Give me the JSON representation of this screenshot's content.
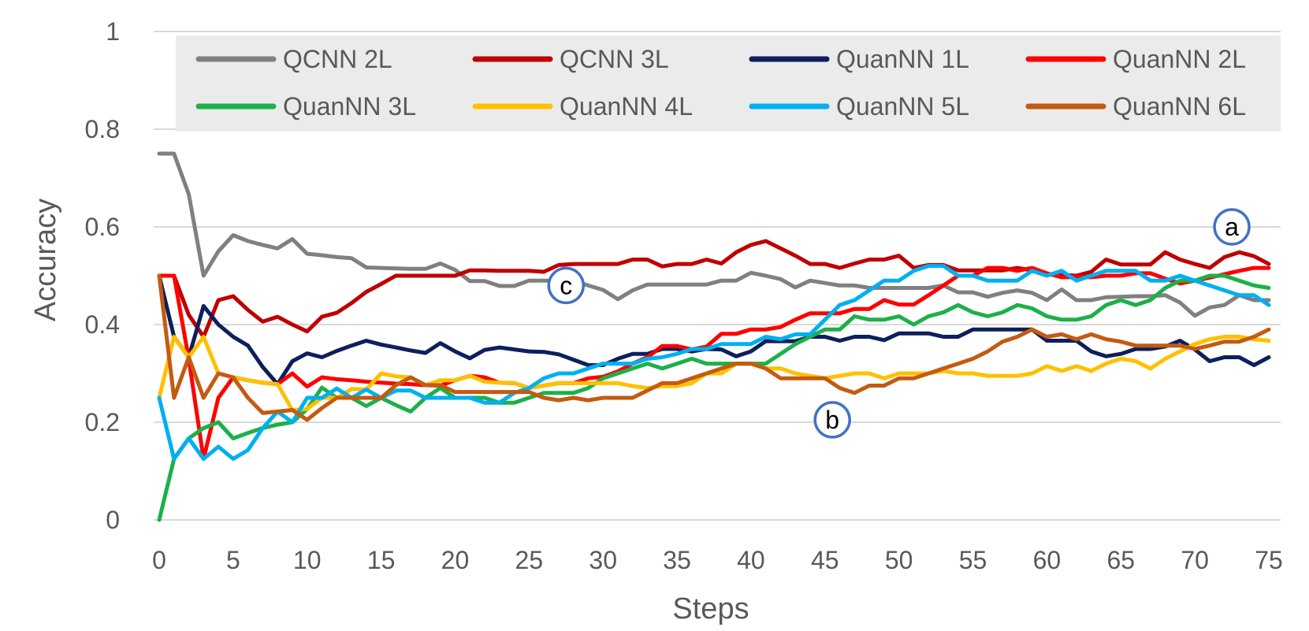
{
  "chart_data": {
    "type": "line",
    "title": "",
    "xlabel": "Steps",
    "ylabel": "Accuracy",
    "xlim": [
      0,
      75
    ],
    "ylim": [
      0,
      1
    ],
    "xticks": [
      "0",
      "5",
      "10",
      "15",
      "20",
      "25",
      "30",
      "35",
      "40",
      "45",
      "50",
      "55",
      "60",
      "65",
      "70",
      "75"
    ],
    "yticks": [
      "0",
      "0.2",
      "0.4",
      "0.6",
      "0.8",
      "1"
    ],
    "legend_position": "top",
    "annotations": [
      {
        "label": "a",
        "x": 72.5,
        "y": 0.6
      },
      {
        "label": "b",
        "x": 45.5,
        "y": 0.205
      },
      {
        "label": "c",
        "x": 27.5,
        "y": 0.48
      }
    ],
    "series": [
      {
        "name": "QCNN 2L",
        "color": "#808080",
        "values": [
          0.75,
          0.75,
          0.667,
          0.5,
          0.55,
          0.583,
          0.571,
          0.563,
          0.556,
          0.575,
          0.545,
          0.542,
          0.538,
          0.536,
          0.517,
          0.516,
          0.515,
          0.514,
          0.514,
          0.525,
          0.512,
          0.489,
          0.489,
          0.479,
          0.479,
          0.49,
          0.49,
          0.49,
          0.49,
          0.48,
          0.471,
          0.452,
          0.47,
          0.482,
          0.482,
          0.482,
          0.482,
          0.482,
          0.49,
          0.49,
          0.506,
          0.5,
          0.493,
          0.476,
          0.49,
          0.485,
          0.48,
          0.48,
          0.475,
          0.475,
          0.475,
          0.475,
          0.475,
          0.48,
          0.466,
          0.466,
          0.457,
          0.465,
          0.47,
          0.465,
          0.45,
          0.472,
          0.45,
          0.45,
          0.456,
          0.457,
          0.458,
          0.458,
          0.46,
          0.445,
          0.418,
          0.435,
          0.44,
          0.46,
          0.45,
          0.45
        ]
      },
      {
        "name": "QCNN 3L",
        "color": "#c00000",
        "values": [
          0.5,
          0.5,
          0.42,
          0.375,
          0.45,
          0.458,
          0.43,
          0.406,
          0.416,
          0.4,
          0.386,
          0.416,
          0.424,
          0.444,
          0.467,
          0.483,
          0.5,
          0.5,
          0.5,
          0.5,
          0.5,
          0.511,
          0.511,
          0.51,
          0.51,
          0.51,
          0.508,
          0.522,
          0.524,
          0.524,
          0.524,
          0.524,
          0.533,
          0.533,
          0.519,
          0.524,
          0.524,
          0.533,
          0.525,
          0.548,
          0.563,
          0.571,
          0.556,
          0.541,
          0.524,
          0.524,
          0.516,
          0.525,
          0.533,
          0.533,
          0.541,
          0.516,
          0.522,
          0.522,
          0.511,
          0.511,
          0.511,
          0.511,
          0.516,
          0.511,
          0.502,
          0.502,
          0.5,
          0.508,
          0.533,
          0.523,
          0.523,
          0.523,
          0.548,
          0.533,
          0.524,
          0.516,
          0.538,
          0.548,
          0.54,
          0.524
        ]
      },
      {
        "name": "QuanNN 1L",
        "color": "#0d1f5c",
        "values": [
          0.5,
          0.375,
          0.333,
          0.438,
          0.4,
          0.375,
          0.357,
          0.313,
          0.278,
          0.325,
          0.341,
          0.333,
          0.346,
          0.357,
          0.367,
          0.359,
          0.353,
          0.347,
          0.342,
          0.362,
          0.345,
          0.331,
          0.348,
          0.353,
          0.349,
          0.345,
          0.344,
          0.339,
          0.328,
          0.317,
          0.317,
          0.33,
          0.34,
          0.34,
          0.35,
          0.35,
          0.345,
          0.35,
          0.349,
          0.335,
          0.345,
          0.366,
          0.366,
          0.366,
          0.375,
          0.375,
          0.367,
          0.375,
          0.375,
          0.368,
          0.382,
          0.382,
          0.382,
          0.375,
          0.375,
          0.39,
          0.39,
          0.39,
          0.39,
          0.39,
          0.367,
          0.367,
          0.367,
          0.345,
          0.335,
          0.34,
          0.35,
          0.35,
          0.355,
          0.367,
          0.349,
          0.325,
          0.333,
          0.333,
          0.317,
          0.333
        ]
      },
      {
        "name": "QuanNN 2L",
        "color": "#ff0000",
        "values": [
          0.5,
          0.5,
          0.33,
          0.125,
          0.25,
          0.292,
          0.286,
          0.281,
          0.278,
          0.3,
          0.273,
          0.292,
          0.288,
          0.286,
          0.283,
          0.281,
          0.279,
          0.278,
          0.276,
          0.275,
          0.286,
          0.295,
          0.292,
          0.281,
          0.28,
          0.27,
          0.275,
          0.28,
          0.28,
          0.29,
          0.293,
          0.304,
          0.32,
          0.333,
          0.356,
          0.356,
          0.349,
          0.355,
          0.381,
          0.381,
          0.39,
          0.39,
          0.395,
          0.41,
          0.423,
          0.423,
          0.423,
          0.432,
          0.432,
          0.45,
          0.441,
          0.441,
          0.46,
          0.48,
          0.5,
          0.5,
          0.516,
          0.516,
          0.51,
          0.516,
          0.505,
          0.497,
          0.497,
          0.497,
          0.5,
          0.5,
          0.505,
          0.505,
          0.494,
          0.484,
          0.49,
          0.496,
          0.503,
          0.51,
          0.516,
          0.516
        ]
      },
      {
        "name": "QuanNN 3L",
        "color": "#1db049",
        "values": [
          0,
          0.125,
          0.167,
          0.188,
          0.2,
          0.167,
          0.178,
          0.188,
          0.195,
          0.2,
          0.227,
          0.271,
          0.25,
          0.25,
          0.233,
          0.25,
          0.235,
          0.222,
          0.25,
          0.27,
          0.25,
          0.25,
          0.25,
          0.24,
          0.24,
          0.25,
          0.26,
          0.26,
          0.26,
          0.27,
          0.29,
          0.3,
          0.31,
          0.32,
          0.31,
          0.32,
          0.33,
          0.32,
          0.32,
          0.32,
          0.32,
          0.32,
          0.34,
          0.36,
          0.375,
          0.39,
          0.39,
          0.417,
          0.41,
          0.41,
          0.417,
          0.4,
          0.417,
          0.425,
          0.44,
          0.425,
          0.417,
          0.425,
          0.44,
          0.433,
          0.417,
          0.41,
          0.41,
          0.417,
          0.44,
          0.45,
          0.44,
          0.45,
          0.475,
          0.49,
          0.49,
          0.5,
          0.5,
          0.49,
          0.48,
          0.475
        ]
      },
      {
        "name": "QuanNN 4L",
        "color": "#ffc000",
        "values": [
          0.25,
          0.375,
          0.333,
          0.375,
          0.3,
          0.292,
          0.286,
          0.281,
          0.278,
          0.225,
          0.227,
          0.25,
          0.25,
          0.268,
          0.267,
          0.3,
          0.294,
          0.292,
          0.276,
          0.286,
          0.286,
          0.295,
          0.283,
          0.281,
          0.28,
          0.27,
          0.275,
          0.28,
          0.28,
          0.28,
          0.28,
          0.28,
          0.274,
          0.27,
          0.274,
          0.274,
          0.28,
          0.3,
          0.3,
          0.32,
          0.32,
          0.31,
          0.31,
          0.3,
          0.295,
          0.29,
          0.295,
          0.3,
          0.3,
          0.29,
          0.3,
          0.3,
          0.3,
          0.305,
          0.3,
          0.3,
          0.295,
          0.295,
          0.295,
          0.3,
          0.315,
          0.305,
          0.315,
          0.305,
          0.32,
          0.33,
          0.325,
          0.31,
          0.33,
          0.345,
          0.36,
          0.37,
          0.375,
          0.375,
          0.37,
          0.367
        ]
      },
      {
        "name": "QuanNN 5L",
        "color": "#00b0f0",
        "values": [
          0.25,
          0.125,
          0.167,
          0.125,
          0.15,
          0.125,
          0.143,
          0.188,
          0.222,
          0.2,
          0.25,
          0.25,
          0.269,
          0.25,
          0.267,
          0.25,
          0.265,
          0.265,
          0.25,
          0.25,
          0.25,
          0.25,
          0.24,
          0.24,
          0.26,
          0.27,
          0.29,
          0.3,
          0.3,
          0.31,
          0.32,
          0.32,
          0.32,
          0.33,
          0.333,
          0.34,
          0.35,
          0.35,
          0.36,
          0.36,
          0.36,
          0.375,
          0.37,
          0.38,
          0.38,
          0.41,
          0.44,
          0.45,
          0.47,
          0.49,
          0.49,
          0.51,
          0.52,
          0.52,
          0.5,
          0.5,
          0.49,
          0.49,
          0.49,
          0.51,
          0.5,
          0.51,
          0.49,
          0.5,
          0.51,
          0.51,
          0.51,
          0.49,
          0.49,
          0.5,
          0.49,
          0.48,
          0.47,
          0.46,
          0.46,
          0.44
        ]
      },
      {
        "name": "QuanNN 6L",
        "color": "#c55a11",
        "values": [
          0.5,
          0.25,
          0.333,
          0.25,
          0.3,
          0.292,
          0.25,
          0.219,
          0.222,
          0.225,
          0.205,
          0.229,
          0.25,
          0.25,
          0.25,
          0.25,
          0.276,
          0.292,
          0.276,
          0.276,
          0.262,
          0.262,
          0.262,
          0.262,
          0.262,
          0.262,
          0.25,
          0.245,
          0.25,
          0.245,
          0.25,
          0.25,
          0.25,
          0.265,
          0.28,
          0.28,
          0.29,
          0.3,
          0.31,
          0.32,
          0.32,
          0.31,
          0.29,
          0.29,
          0.29,
          0.29,
          0.27,
          0.26,
          0.275,
          0.275,
          0.29,
          0.29,
          0.3,
          0.31,
          0.32,
          0.33,
          0.345,
          0.365,
          0.375,
          0.39,
          0.375,
          0.38,
          0.37,
          0.38,
          0.37,
          0.365,
          0.357,
          0.357,
          0.357,
          0.357,
          0.35,
          0.357,
          0.365,
          0.365,
          0.375,
          0.39
        ]
      }
    ]
  }
}
